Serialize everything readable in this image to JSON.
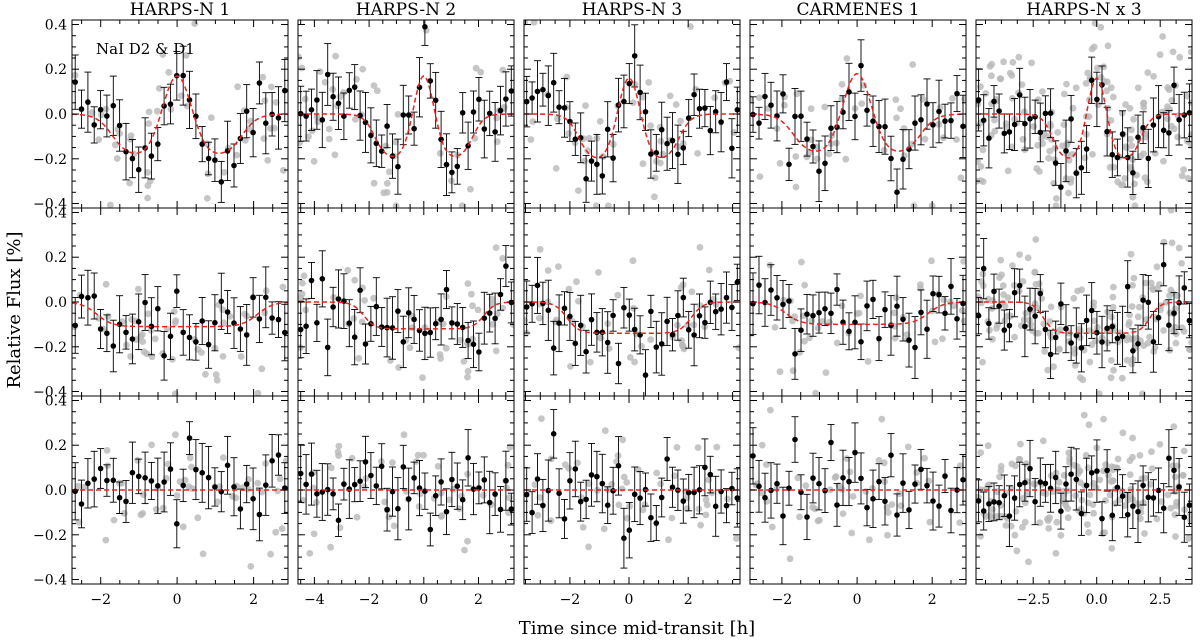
{
  "figure": {
    "ylabel": "Relative Flux [%]",
    "xlabel": "Time since mid-transit [h]",
    "annotation": "NaI D2 & D1"
  },
  "colors": {
    "binned": "#000000",
    "raw": "#b8b8b8",
    "model": "#e8231f"
  },
  "chart_data": {
    "type": "scatter",
    "ylim": [
      -0.42,
      0.42
    ],
    "yticks": [
      -0.4,
      -0.2,
      0.0,
      0.2,
      0.4
    ],
    "columns": [
      {
        "title": "HARPS-N 1",
        "xlim": [
          -2.75,
          2.9
        ],
        "xticks": [
          -2,
          0,
          2
        ],
        "tick_labels": [
          "−2",
          "0",
          "2"
        ],
        "seed": 11,
        "nbins": 34,
        "nraw": 50
      },
      {
        "title": "HARPS-N 2",
        "xlim": [
          -4.6,
          3.3
        ],
        "xticks": [
          -4,
          -2,
          0,
          2
        ],
        "tick_labels": [
          "−4",
          "−2",
          "0",
          "2"
        ],
        "seed": 23,
        "nbins": 40,
        "nraw": 50
      },
      {
        "title": "HARPS-N 3",
        "xlim": [
          -3.55,
          3.75
        ],
        "xticks": [
          -2,
          0,
          2
        ],
        "tick_labels": [
          "−2",
          "0",
          "2"
        ],
        "seed": 37,
        "nbins": 40,
        "nraw": 50
      },
      {
        "title": "CARMENES 1",
        "xlim": [
          -2.85,
          2.9
        ],
        "xticks": [
          -2,
          0,
          2
        ],
        "tick_labels": [
          "−2",
          "0",
          "2"
        ],
        "seed": 51,
        "nbins": 36,
        "nraw": 48
      },
      {
        "title": "HARPS-N x 3",
        "xlim": [
          -4.75,
          3.75
        ],
        "xticks": [
          -2.5,
          0.0,
          2.5
        ],
        "tick_labels": [
          "−2.5",
          "0.0",
          "2.5"
        ],
        "seed": 67,
        "nbins": 42,
        "nraw": 170
      }
    ],
    "rows": [
      {
        "name": "row1",
        "models": [
          {
            "t14": 3.4,
            "depth": 0.19,
            "peak": 0.17
          },
          {
            "t14": 3.6,
            "depth": 0.2,
            "peak": 0.17
          },
          {
            "t14": 3.4,
            "depth": 0.21,
            "peak": 0.16
          },
          {
            "t14": 3.4,
            "depth": 0.18,
            "peak": 0.18
          },
          {
            "t14": 3.5,
            "depth": 0.21,
            "peak": 0.16
          }
        ]
      },
      {
        "name": "row2",
        "models": [
          {
            "t14": 4.2,
            "depth": 0.11,
            "peak": 0
          },
          {
            "t14": 4.4,
            "depth": 0.12,
            "peak": 0
          },
          {
            "t14": 4.2,
            "depth": 0.14,
            "peak": 0
          },
          {
            "t14": 3.8,
            "depth": 0.1,
            "peak": 0
          },
          {
            "t14": 4.2,
            "depth": 0.14,
            "peak": 0
          }
        ]
      },
      {
        "name": "row3",
        "models": [
          {
            "t14": 0,
            "depth": 0,
            "peak": 0
          },
          {
            "t14": 0,
            "depth": 0,
            "peak": 0
          },
          {
            "t14": 0,
            "depth": 0,
            "peak": 0
          },
          {
            "t14": 0,
            "depth": 0,
            "peak": 0
          },
          {
            "t14": 0,
            "depth": 0,
            "peak": 0
          }
        ]
      }
    ]
  }
}
